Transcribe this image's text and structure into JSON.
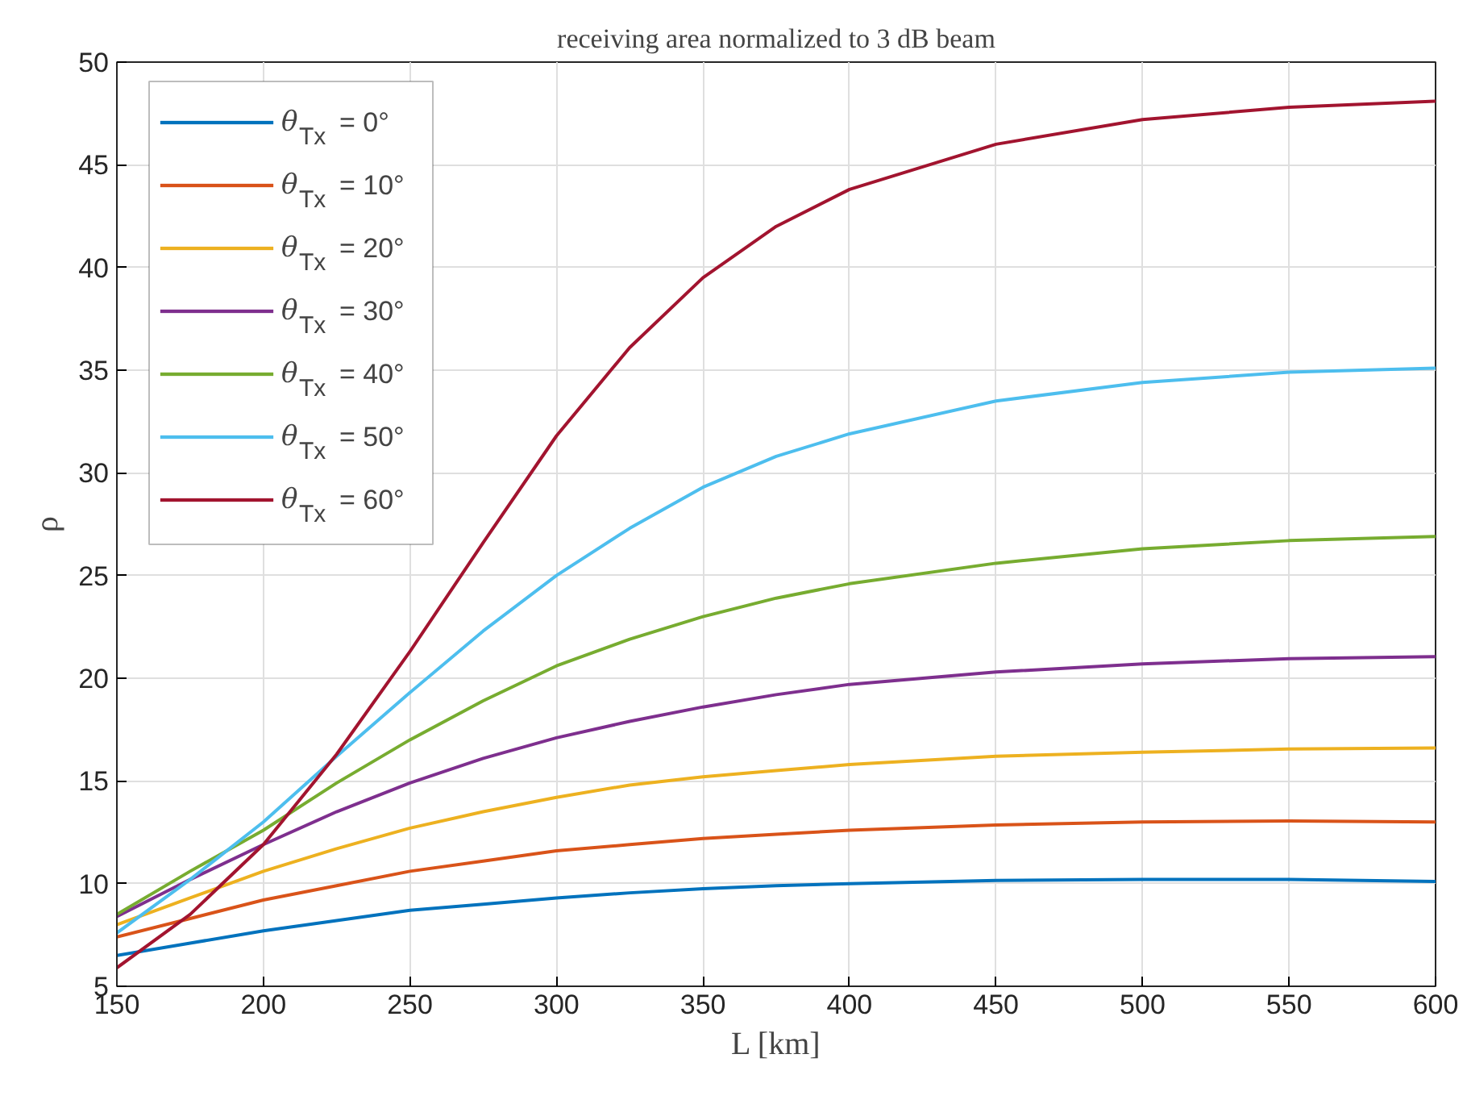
{
  "chart_data": {
    "type": "line",
    "title": "receiving area normalized to 3 dB beam",
    "xlabel": "L [km]",
    "ylabel": "ρ",
    "x": [
      150,
      175,
      200,
      225,
      250,
      275,
      300,
      325,
      350,
      375,
      400,
      450,
      500,
      550,
      600
    ],
    "xlim": [
      150,
      600
    ],
    "xticks": [
      150,
      200,
      250,
      300,
      350,
      400,
      450,
      500,
      550,
      600
    ],
    "ylim": [
      5,
      50
    ],
    "yticks": [
      5,
      10,
      15,
      20,
      25,
      30,
      35,
      40,
      45,
      50
    ],
    "grid": true,
    "legend": "top left",
    "marker": "none",
    "line_style": "solid",
    "series": [
      {
        "name": "θ$_{Tx}$ = 0°",
        "color": "#0072bd",
        "values": [
          6.5,
          7.1,
          7.7,
          8.2,
          8.7,
          9.0,
          9.3,
          9.55,
          9.75,
          9.9,
          10.0,
          10.15,
          10.2,
          10.2,
          10.1
        ]
      },
      {
        "name": "θ$_{Tx}$ = 10°",
        "color": "#d95319",
        "values": [
          7.4,
          8.3,
          9.2,
          9.9,
          10.6,
          11.1,
          11.6,
          11.9,
          12.2,
          12.4,
          12.6,
          12.85,
          13.0,
          13.05,
          13.0
        ]
      },
      {
        "name": "θ$_{Tx}$ = 20°",
        "color": "#edb120",
        "values": [
          8.0,
          9.3,
          10.6,
          11.7,
          12.7,
          13.5,
          14.2,
          14.8,
          15.2,
          15.5,
          15.8,
          16.2,
          16.4,
          16.55,
          16.6
        ]
      },
      {
        "name": "θ$_{Tx}$ = 30°",
        "color": "#7e2f8e",
        "values": [
          8.4,
          10.2,
          11.9,
          13.5,
          14.9,
          16.1,
          17.1,
          17.9,
          18.6,
          19.2,
          19.7,
          20.3,
          20.7,
          20.95,
          21.05
        ]
      },
      {
        "name": "θ$_{Tx}$ = 40°",
        "color": "#77ac30",
        "values": [
          8.5,
          10.6,
          12.6,
          14.9,
          17.0,
          18.9,
          20.6,
          21.9,
          23.0,
          23.9,
          24.6,
          25.6,
          26.3,
          26.7,
          26.9
        ]
      },
      {
        "name": "θ$_{Tx}$ = 50°",
        "color": "#4dbeee",
        "values": [
          7.6,
          10.2,
          13.0,
          16.2,
          19.3,
          22.3,
          25.0,
          27.3,
          29.3,
          30.8,
          31.9,
          33.5,
          34.4,
          34.9,
          35.1
        ]
      },
      {
        "name": "θ$_{Tx}$ = 60°",
        "color": "#a2142f",
        "values": [
          5.9,
          8.5,
          11.9,
          16.3,
          21.3,
          26.6,
          31.8,
          36.1,
          39.5,
          42.0,
          43.8,
          46.0,
          47.2,
          47.8,
          48.1
        ]
      }
    ]
  }
}
